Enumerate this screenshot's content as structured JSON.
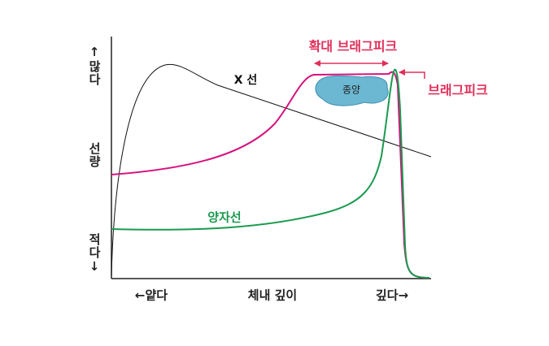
{
  "y_axis": {
    "high": "↑많다",
    "label": "선량",
    "low": "적다↓"
  },
  "x_axis": {
    "shallow": "←얕다",
    "label": "체내 깊이",
    "deep": "깊다→"
  },
  "annotations": {
    "xray": "X 선",
    "proton": "양자선",
    "spread_out_bragg_peak": "확대 브래그피크",
    "bragg_peak": "브래그피크",
    "tumor": "종양"
  }
}
